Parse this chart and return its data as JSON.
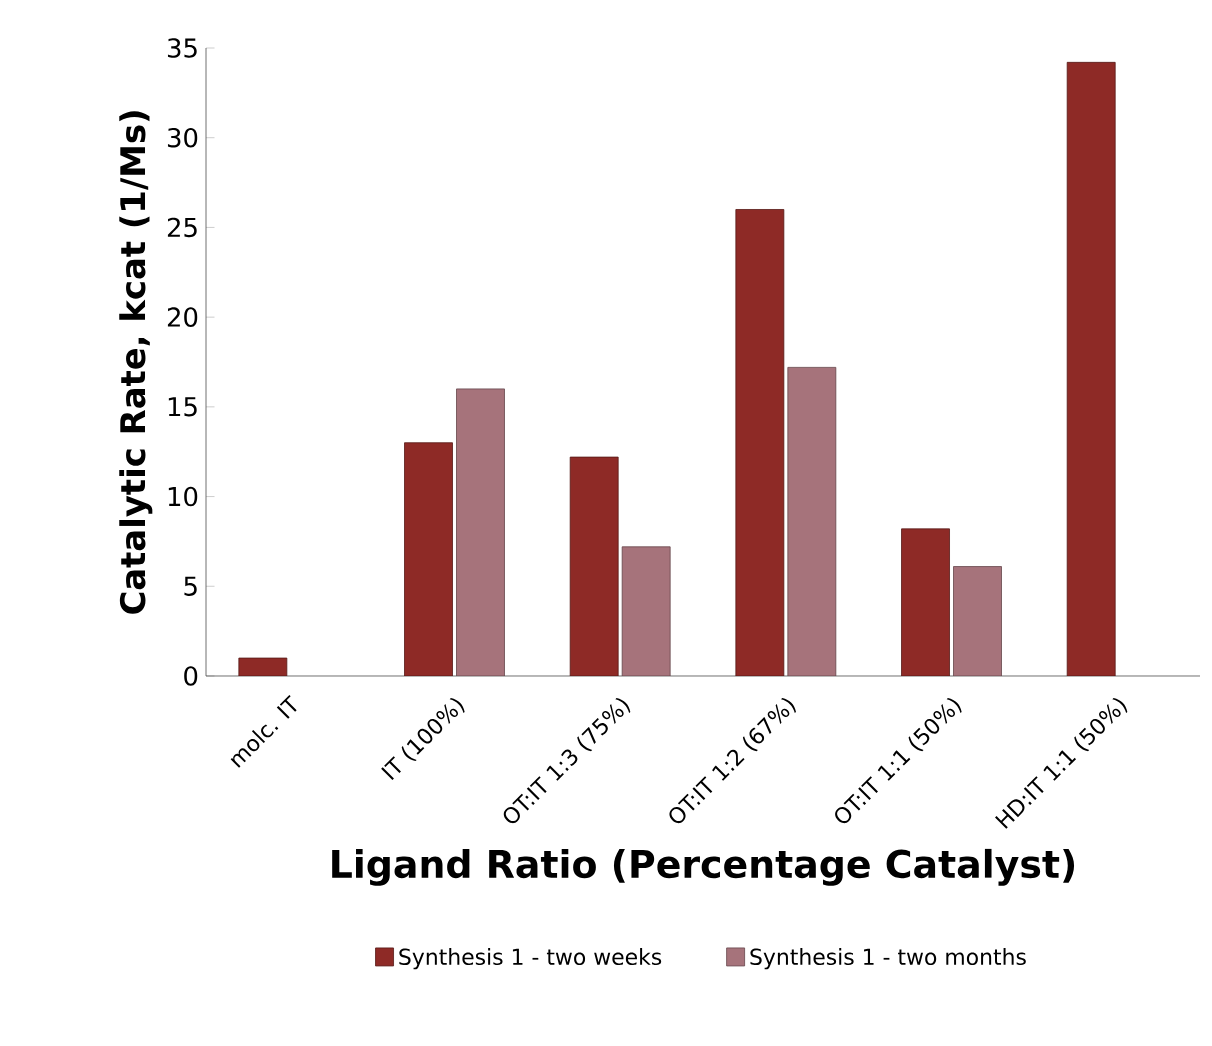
{
  "chart_data": {
    "type": "bar",
    "xlabel": "Ligand Ratio (Percentage Catalyst)",
    "ylabel": "Catalytic Rate, kcat (1/Ms)",
    "categories": [
      "molc. IT",
      "IT (100%)",
      "OT:IT 1:3 (75%)",
      "OT:IT 1:2 (67%)",
      "OT:IT 1:1 (50%)",
      "HD:IT 1:1 (50%)"
    ],
    "series": [
      {
        "name": "Synthesis 1 - two weeks",
        "color": "#8e2a26",
        "values": [
          1,
          13,
          12.2,
          26,
          8.2,
          34.2
        ]
      },
      {
        "name": "Synthesis 1 - two months",
        "color": "#a6737b",
        "values": [
          null,
          16,
          7.2,
          17.2,
          6.1,
          null
        ]
      }
    ],
    "ylim": [
      0,
      35
    ],
    "yticks": [
      0,
      5,
      10,
      15,
      20,
      25,
      30,
      35
    ],
    "grid": false,
    "legend": "bottom"
  }
}
